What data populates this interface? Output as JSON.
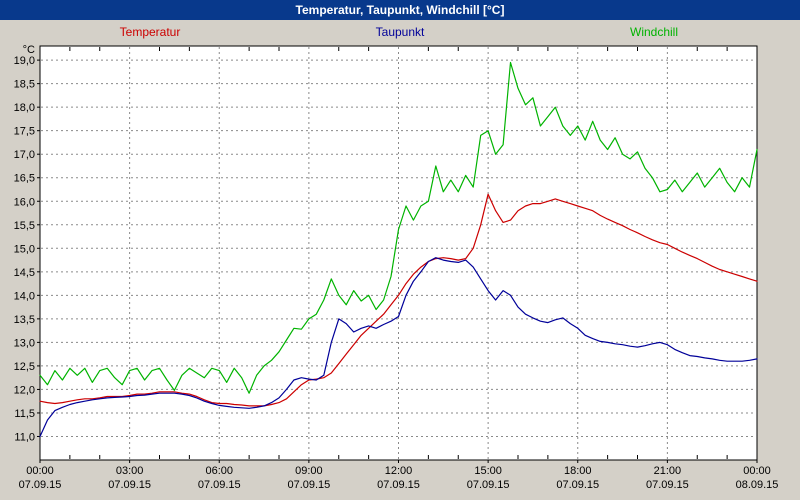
{
  "window": {
    "title": "Temperatur, Taupunkt, Windchill [°C]"
  },
  "colors": {
    "titlebar_bg": "#08398c",
    "titlebar_text": "#ffffff",
    "window_bg": "#d4d0c8",
    "plot_bg": "#ffffff",
    "grid": "#8a8a8a",
    "axis": "#000000",
    "temperatur": "#cc0000",
    "taupunkt": "#000099",
    "windchill": "#00b300"
  },
  "chart_data": {
    "type": "line",
    "title": "Temperatur, Taupunkt, Windchill [°C]",
    "xlabel": "",
    "ylabel": "°C",
    "ylim": [
      10.5,
      19.3
    ],
    "xlim_hours": [
      0,
      24
    ],
    "grid": true,
    "legend_position": "top",
    "y_ticks": [
      11.0,
      11.5,
      12.0,
      12.5,
      13.0,
      13.5,
      14.0,
      14.5,
      15.0,
      15.5,
      16.0,
      16.5,
      17.0,
      17.5,
      18.0,
      18.5,
      19.0
    ],
    "y_tick_labels": [
      "11,0",
      "11,5",
      "12,0",
      "12,5",
      "13,0",
      "13,5",
      "14,0",
      "14,5",
      "15,0",
      "15,5",
      "16,0",
      "16,5",
      "17,0",
      "17,5",
      "18,0",
      "18,5",
      "19,0"
    ],
    "x_ticks": [
      {
        "hour": 0,
        "time": "00:00",
        "date": "07.09.15"
      },
      {
        "hour": 3,
        "time": "03:00",
        "date": "07.09.15"
      },
      {
        "hour": 6,
        "time": "06:00",
        "date": "07.09.15"
      },
      {
        "hour": 9,
        "time": "09:00",
        "date": "07.09.15"
      },
      {
        "hour": 12,
        "time": "12:00",
        "date": "07.09.15"
      },
      {
        "hour": 15,
        "time": "15:00",
        "date": "07.09.15"
      },
      {
        "hour": 18,
        "time": "18:00",
        "date": "07.09.15"
      },
      {
        "hour": 21,
        "time": "21:00",
        "date": "07.09.15"
      },
      {
        "hour": 24,
        "time": "00:00",
        "date": "08.09.15"
      }
    ],
    "x_minor_step_hours": 1,
    "sample_step_hours": 0.25,
    "series": [
      {
        "name": "Temperatur",
        "color": "#cc0000",
        "values": [
          11.75,
          11.72,
          11.7,
          11.72,
          11.75,
          11.78,
          11.8,
          11.8,
          11.82,
          11.85,
          11.85,
          11.85,
          11.87,
          11.9,
          11.9,
          11.92,
          11.95,
          11.95,
          11.95,
          11.92,
          11.9,
          11.85,
          11.78,
          11.72,
          11.7,
          11.7,
          11.68,
          11.67,
          11.65,
          11.65,
          11.65,
          11.68,
          11.72,
          11.8,
          11.95,
          12.1,
          12.2,
          12.22,
          12.25,
          12.35,
          12.55,
          12.75,
          12.95,
          13.15,
          13.3,
          13.45,
          13.6,
          13.8,
          14.0,
          14.25,
          14.45,
          14.6,
          14.72,
          14.78,
          14.8,
          14.78,
          14.75,
          14.78,
          15.0,
          15.5,
          16.15,
          15.8,
          15.55,
          15.6,
          15.8,
          15.9,
          15.95,
          15.95,
          16.0,
          16.05,
          16.0,
          15.95,
          15.9,
          15.85,
          15.8,
          15.7,
          15.62,
          15.55,
          15.48,
          15.4,
          15.33,
          15.25,
          15.18,
          15.12,
          15.08,
          15.0,
          14.92,
          14.85,
          14.78,
          14.7,
          14.62,
          14.55,
          14.5,
          14.45,
          14.4,
          14.35,
          14.3
        ]
      },
      {
        "name": "Taupunkt",
        "color": "#000099",
        "values": [
          11.0,
          11.35,
          11.55,
          11.62,
          11.68,
          11.72,
          11.75,
          11.78,
          11.8,
          11.82,
          11.83,
          11.84,
          11.85,
          11.87,
          11.88,
          11.9,
          11.92,
          11.92,
          11.92,
          11.9,
          11.87,
          11.82,
          11.75,
          11.7,
          11.66,
          11.64,
          11.62,
          11.61,
          11.6,
          11.62,
          11.65,
          11.72,
          11.82,
          12.0,
          12.2,
          12.25,
          12.22,
          12.2,
          12.3,
          13.0,
          13.5,
          13.4,
          13.22,
          13.3,
          13.35,
          13.3,
          13.38,
          13.45,
          13.55,
          14.0,
          14.3,
          14.5,
          14.72,
          14.8,
          14.75,
          14.72,
          14.7,
          14.75,
          14.6,
          14.35,
          14.1,
          13.9,
          14.1,
          14.0,
          13.75,
          13.6,
          13.52,
          13.45,
          13.42,
          13.48,
          13.52,
          13.4,
          13.3,
          13.15,
          13.08,
          13.02,
          13.0,
          12.97,
          12.95,
          12.92,
          12.9,
          12.93,
          12.97,
          13.0,
          12.95,
          12.85,
          12.78,
          12.72,
          12.7,
          12.67,
          12.65,
          12.62,
          12.6,
          12.6,
          12.6,
          12.62,
          12.65
        ]
      },
      {
        "name": "Windchill",
        "color": "#00b300",
        "values": [
          12.3,
          12.1,
          12.4,
          12.2,
          12.45,
          12.3,
          12.45,
          12.15,
          12.4,
          12.45,
          12.25,
          12.1,
          12.4,
          12.45,
          12.2,
          12.4,
          12.45,
          12.2,
          11.98,
          12.3,
          12.45,
          12.35,
          12.25,
          12.45,
          12.4,
          12.15,
          12.45,
          12.25,
          11.92,
          12.3,
          12.5,
          12.62,
          12.8,
          13.05,
          13.3,
          13.28,
          13.5,
          13.6,
          13.9,
          14.35,
          14.0,
          13.8,
          14.1,
          13.88,
          14.0,
          13.7,
          13.9,
          14.4,
          15.4,
          15.9,
          15.6,
          15.9,
          16.0,
          16.75,
          16.2,
          16.45,
          16.2,
          16.55,
          16.3,
          17.4,
          17.5,
          17.0,
          17.2,
          18.95,
          18.4,
          18.05,
          18.2,
          17.6,
          17.8,
          18.0,
          17.6,
          17.4,
          17.6,
          17.3,
          17.7,
          17.3,
          17.1,
          17.35,
          17.0,
          16.9,
          17.05,
          16.7,
          16.5,
          16.2,
          16.25,
          16.45,
          16.2,
          16.4,
          16.6,
          16.3,
          16.5,
          16.7,
          16.4,
          16.2,
          16.5,
          16.3,
          17.1
        ]
      }
    ]
  }
}
